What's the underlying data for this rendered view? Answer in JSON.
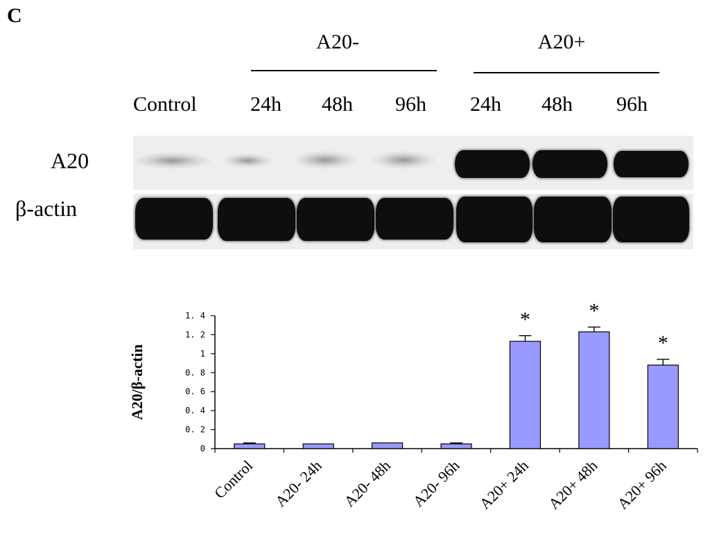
{
  "figure": {
    "panel_letter": "C"
  },
  "blot": {
    "groups": [
      {
        "label": "A20-"
      },
      {
        "label": "A20+"
      }
    ],
    "lanes": [
      "Control",
      "24h",
      "48h",
      "96h",
      "24h",
      "48h",
      "96h"
    ],
    "rows": [
      {
        "label": "A20",
        "intensity": [
          0.15,
          0.1,
          0.2,
          0.3,
          1,
          1,
          1
        ]
      },
      {
        "label": "β-actin",
        "intensity": [
          1,
          1,
          1,
          1,
          1,
          1,
          1
        ]
      }
    ]
  },
  "chart_data": {
    "type": "bar",
    "categories": [
      "Control",
      "A20- 24h",
      "A20- 48h",
      "A20- 96h",
      "A20+ 24h",
      "A20+ 48h",
      "A20+ 96h"
    ],
    "values": [
      0.05,
      0.05,
      0.06,
      0.05,
      1.13,
      1.23,
      0.88
    ],
    "errors": [
      0.01,
      0,
      0,
      0.01,
      0.06,
      0.05,
      0.06
    ],
    "annotations": [
      "",
      "",
      "",
      "",
      "*",
      "*",
      "*"
    ],
    "ylabel": "A20/β-actin",
    "xlabel": "",
    "ylim": [
      0,
      1.4
    ],
    "yticks": [
      0,
      0.2,
      0.4,
      0.6,
      0.8,
      1,
      1.2,
      1.4
    ],
    "ytick_labels": [
      "0",
      "0. 2",
      "0. 4",
      "0. 6",
      "0. 8",
      "1",
      "1. 2",
      "1. 4"
    ],
    "bar_color": "#9999ff",
    "grid": false
  }
}
